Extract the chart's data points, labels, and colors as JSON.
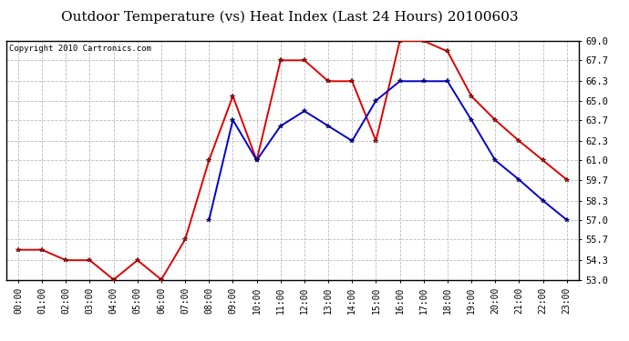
{
  "title": "Outdoor Temperature (vs) Heat Index (Last 24 Hours) 20100603",
  "copyright": "Copyright 2010 Cartronics.com",
  "hours": [
    "00:00",
    "01:00",
    "02:00",
    "03:00",
    "04:00",
    "05:00",
    "06:00",
    "07:00",
    "08:00",
    "09:00",
    "10:00",
    "11:00",
    "12:00",
    "13:00",
    "14:00",
    "15:00",
    "16:00",
    "17:00",
    "18:00",
    "19:00",
    "20:00",
    "21:00",
    "22:00",
    "23:00"
  ],
  "temp": [
    55.0,
    55.0,
    54.3,
    54.3,
    53.0,
    54.3,
    53.0,
    55.7,
    61.0,
    65.3,
    61.0,
    67.7,
    67.7,
    66.3,
    66.3,
    62.3,
    69.0,
    69.0,
    68.3,
    65.3,
    63.7,
    62.3,
    61.0,
    59.7
  ],
  "heat_index": [
    null,
    null,
    null,
    null,
    null,
    null,
    null,
    null,
    57.0,
    63.7,
    61.0,
    63.3,
    64.3,
    63.3,
    62.3,
    65.0,
    66.3,
    66.3,
    66.3,
    63.7,
    61.0,
    59.7,
    58.3,
    57.0
  ],
  "ylim": [
    53.0,
    69.0
  ],
  "yticks": [
    53.0,
    54.3,
    55.7,
    57.0,
    58.3,
    59.7,
    61.0,
    62.3,
    63.7,
    65.0,
    66.3,
    67.7,
    69.0
  ],
  "temp_color": "#dd0000",
  "heat_color": "#0000cc",
  "bg_color": "#ffffff",
  "grid_color": "#bbbbbb",
  "title_fontsize": 11,
  "copyright_fontsize": 6.5,
  "tick_fontsize": 7,
  "ytick_fontsize": 7.5
}
